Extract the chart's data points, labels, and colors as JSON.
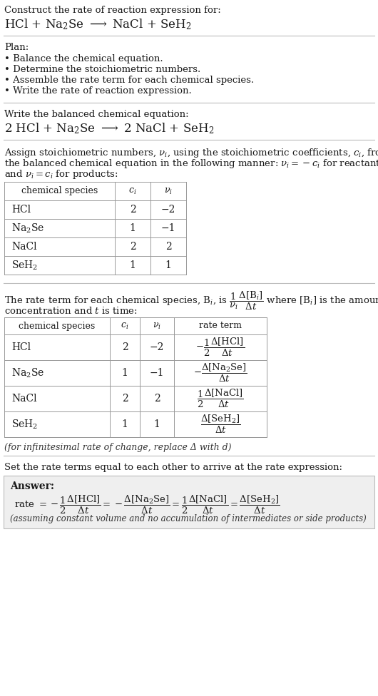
{
  "bg_color": "#ffffff",
  "text_color": "#000000",
  "title_line1": "Construct the rate of reaction expression for:",
  "plan_header": "Plan:",
  "plan_items": [
    "• Balance the chemical equation.",
    "• Determine the stoichiometric numbers.",
    "• Assemble the rate term for each chemical species.",
    "• Write the rate of reaction expression."
  ],
  "balanced_header": "Write the balanced chemical equation:",
  "table1_headers": [
    "chemical species",
    "c_i",
    "nu_i"
  ],
  "table1_species": [
    "HCl",
    "Na$_2$Se",
    "NaCl",
    "SeH$_2$"
  ],
  "table1_ci": [
    "2",
    "1",
    "2",
    "1"
  ],
  "table1_nu": [
    "−2",
    "−1",
    "2",
    "1"
  ],
  "table2_headers": [
    "chemical species",
    "c_i",
    "nu_i",
    "rate term"
  ],
  "table2_species": [
    "HCl",
    "Na$_2$Se",
    "NaCl",
    "SeH$_2$"
  ],
  "table2_ci": [
    "2",
    "1",
    "2",
    "1"
  ],
  "table2_nu": [
    "−2",
    "−1",
    "2",
    "1"
  ],
  "infinitesimal_note": "(for infinitesimal rate of change, replace Δ with d)",
  "answer_header": "Set the rate terms equal to each other to arrive at the rate expression:",
  "answer_label": "Answer:",
  "assuming_note": "(assuming constant volume and no accumulation of intermediates or side products)"
}
